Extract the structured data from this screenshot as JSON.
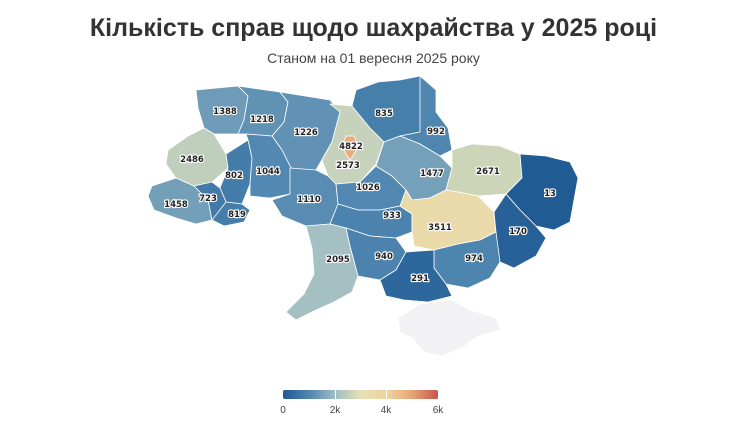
{
  "title": "Кількість справ щодо шахрайства у 2025 році",
  "subtitle": "Станом на 01 вересня 2025 року",
  "legend": {
    "min": 0,
    "max": 6000,
    "ticks": [
      {
        "value": 0,
        "label": "0"
      },
      {
        "value": 2000,
        "label": "2k"
      },
      {
        "value": 4000,
        "label": "4k"
      },
      {
        "value": 6000,
        "label": "6k"
      }
    ],
    "colors": [
      "#1f5a93",
      "#4f86b0",
      "#9dbcc4",
      "#e4e2b4",
      "#f1d39e",
      "#e7a576",
      "#c8544a"
    ]
  },
  "regions": [
    {
      "id": "volyn",
      "value": 1388
    },
    {
      "id": "rivne",
      "value": 1218
    },
    {
      "id": "zhytomyr",
      "value": 1226
    },
    {
      "id": "kyiv-city",
      "value": 4822
    },
    {
      "id": "kyiv-oblast",
      "value": 2573
    },
    {
      "id": "chernihiv",
      "value": 835
    },
    {
      "id": "sumy",
      "value": 992
    },
    {
      "id": "lviv",
      "value": 2486
    },
    {
      "id": "ternopil",
      "value": 802
    },
    {
      "id": "khmelnytskyi",
      "value": 1044
    },
    {
      "id": "vinnytsia",
      "value": 1110
    },
    {
      "id": "cherkasy",
      "value": 1026
    },
    {
      "id": "poltava",
      "value": 1477
    },
    {
      "id": "kharkiv",
      "value": 2671
    },
    {
      "id": "luhansk",
      "value": 13
    },
    {
      "id": "zakarpattia",
      "value": 1458
    },
    {
      "id": "ivano-frankivsk",
      "value": 723
    },
    {
      "id": "chernivtsi",
      "value": 819
    },
    {
      "id": "kirovohrad",
      "value": 933
    },
    {
      "id": "dnipropetrovsk",
      "value": 3511
    },
    {
      "id": "donetsk",
      "value": 170
    },
    {
      "id": "odesa",
      "value": 2095
    },
    {
      "id": "mykolaiv",
      "value": 940
    },
    {
      "id": "zaporizhzhia",
      "value": 974
    },
    {
      "id": "kherson",
      "value": 291
    },
    {
      "id": "crimea",
      "value": null
    }
  ]
}
